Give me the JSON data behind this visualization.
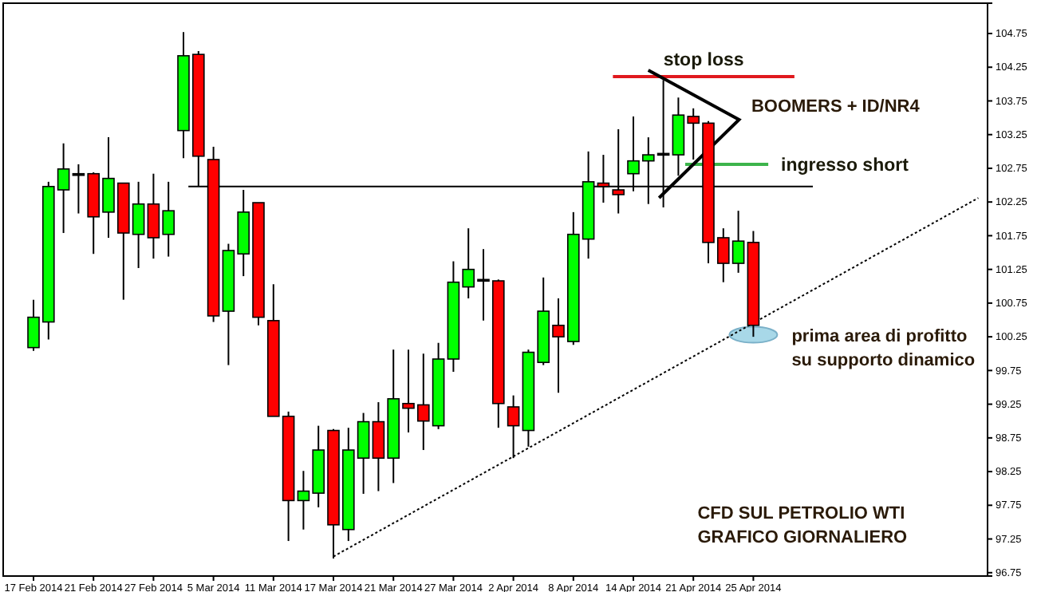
{
  "chart_data": {
    "type": "candlestick",
    "categories": [
      "17 Feb 2014",
      null,
      null,
      null,
      "21 Feb 2014",
      null,
      null,
      null,
      "27 Feb 2014",
      null,
      null,
      null,
      "5 Mar 2014",
      null,
      null,
      null,
      "11 Mar 2014",
      null,
      null,
      null,
      "17 Mar 2014",
      null,
      null,
      null,
      "21 Mar 2014",
      null,
      null,
      null,
      "27 Mar 2014",
      null,
      null,
      null,
      "2 Apr 2014",
      null,
      null,
      null,
      "8 Apr 2014",
      null,
      null,
      null,
      "14 Apr 2014",
      null,
      null,
      null,
      "21 Apr 2014",
      null,
      null,
      null,
      "25 Apr 2014",
      null,
      null,
      null,
      null,
      null,
      null,
      null,
      null,
      null,
      null,
      null,
      null,
      null,
      null,
      null
    ],
    "ohlc": [
      [
        100.09,
        100.8,
        100.04,
        100.54
      ],
      [
        100.47,
        102.55,
        100.21,
        102.48
      ],
      [
        102.43,
        103.12,
        101.79,
        102.74
      ],
      [
        102.67,
        102.81,
        102.08,
        102.67
      ],
      [
        102.67,
        102.69,
        101.48,
        102.03
      ],
      [
        102.1,
        103.21,
        101.72,
        102.6
      ],
      [
        102.53,
        102.53,
        100.8,
        101.79
      ],
      [
        101.77,
        102.55,
        101.27,
        102.22
      ],
      [
        102.22,
        102.67,
        101.41,
        101.72
      ],
      [
        101.77,
        102.55,
        101.44,
        102.12
      ],
      [
        103.31,
        104.77,
        102.9,
        104.42
      ],
      [
        104.44,
        104.49,
        102.48,
        102.93
      ],
      [
        102.88,
        103.07,
        100.47,
        100.56
      ],
      [
        100.63,
        101.63,
        99.83,
        101.53
      ],
      [
        101.48,
        102.43,
        101.15,
        102.1
      ],
      [
        102.24,
        102.24,
        100.42,
        100.54
      ],
      [
        100.49,
        101.03,
        99.07,
        99.07
      ],
      [
        99.07,
        99.14,
        97.22,
        97.82
      ],
      [
        97.82,
        98.26,
        97.39,
        97.96
      ],
      [
        97.93,
        98.93,
        97.72,
        98.57
      ],
      [
        98.86,
        98.88,
        96.96,
        97.46
      ],
      [
        97.39,
        98.9,
        97.22,
        98.57
      ],
      [
        98.45,
        99.12,
        97.92,
        98.99
      ],
      [
        98.99,
        99.28,
        97.96,
        98.45
      ],
      [
        98.45,
        100.06,
        98.08,
        99.33
      ],
      [
        99.26,
        100.06,
        98.83,
        99.19
      ],
      [
        99.24,
        100.0,
        98.57,
        99.0
      ],
      [
        98.93,
        100.16,
        98.88,
        99.92
      ],
      [
        99.92,
        101.37,
        99.73,
        101.06
      ],
      [
        100.99,
        101.86,
        100.82,
        101.25
      ],
      [
        101.1,
        101.55,
        100.49,
        101.1
      ],
      [
        101.08,
        101.1,
        98.9,
        99.26
      ],
      [
        99.21,
        99.38,
        98.45,
        98.93
      ],
      [
        98.86,
        100.06,
        98.62,
        100.02
      ],
      [
        99.87,
        101.13,
        99.83,
        100.63
      ],
      [
        100.42,
        100.82,
        99.42,
        100.25
      ],
      [
        100.18,
        102.1,
        100.13,
        101.77
      ],
      [
        101.7,
        103.0,
        101.41,
        102.55
      ],
      [
        102.53,
        102.95,
        102.24,
        102.48
      ],
      [
        102.43,
        103.33,
        102.08,
        102.36
      ],
      [
        102.67,
        103.52,
        102.41,
        102.86
      ],
      [
        102.86,
        103.21,
        102.22,
        102.95
      ],
      [
        102.97,
        104.06,
        102.17,
        102.97
      ],
      [
        102.95,
        103.8,
        102.64,
        103.54
      ],
      [
        103.52,
        103.64,
        102.88,
        103.42
      ],
      [
        103.42,
        103.45,
        101.34,
        101.65
      ],
      [
        101.72,
        101.86,
        101.06,
        101.34
      ],
      [
        101.34,
        102.12,
        101.2,
        101.67
      ],
      [
        101.65,
        101.82,
        100.25,
        100.42
      ],
      null,
      null,
      null,
      null,
      null,
      null,
      null,
      null,
      null,
      null,
      null,
      null,
      null,
      null,
      null
    ],
    "series": [
      {
        "type": "line",
        "color": "#000000",
        "line_style": "dotted",
        "values": [
          null,
          null,
          null,
          null,
          null,
          null,
          null,
          null,
          null,
          null,
          null,
          null,
          null,
          null,
          null,
          null,
          null,
          null,
          null,
          null,
          96.99,
          null,
          null,
          null,
          null,
          null,
          null,
          null,
          null,
          null,
          null,
          null,
          null,
          null,
          null,
          null,
          null,
          null,
          null,
          null,
          null,
          null,
          null,
          null,
          null,
          null,
          null,
          null,
          null,
          null,
          null,
          null,
          null,
          null,
          null,
          null,
          null,
          null,
          null,
          null,
          null,
          null,
          null,
          102.31
        ]
      }
    ],
    "ylim": [
      96.7,
      105.2
    ],
    "yticks": [
      96.75,
      97.25,
      97.75,
      98.25,
      98.75,
      99.25,
      99.75,
      100.25,
      100.75,
      101.25,
      101.75,
      102.25,
      102.75,
      103.25,
      103.75,
      104.25,
      104.75
    ],
    "ref_lines": [
      {
        "axis": "y",
        "value": 102.48,
        "color": "#000000"
      },
      {
        "axis": "y",
        "value": 104.11,
        "label": "stop loss",
        "color": "#e0191e"
      },
      {
        "axis": "y",
        "value": 102.81,
        "label": "ingresso short",
        "color": "#3cb44b"
      }
    ],
    "annotations": [
      "BOOMERS + ID/NR4",
      {
        "text": "prima area di profitto\nsu supporto dinamico",
        "x": "25 Apr 2014",
        "y": 100.28
      },
      "CFD SUL PETROLIO WTI\nGRAFICO GIORNALIERO"
    ]
  }
}
